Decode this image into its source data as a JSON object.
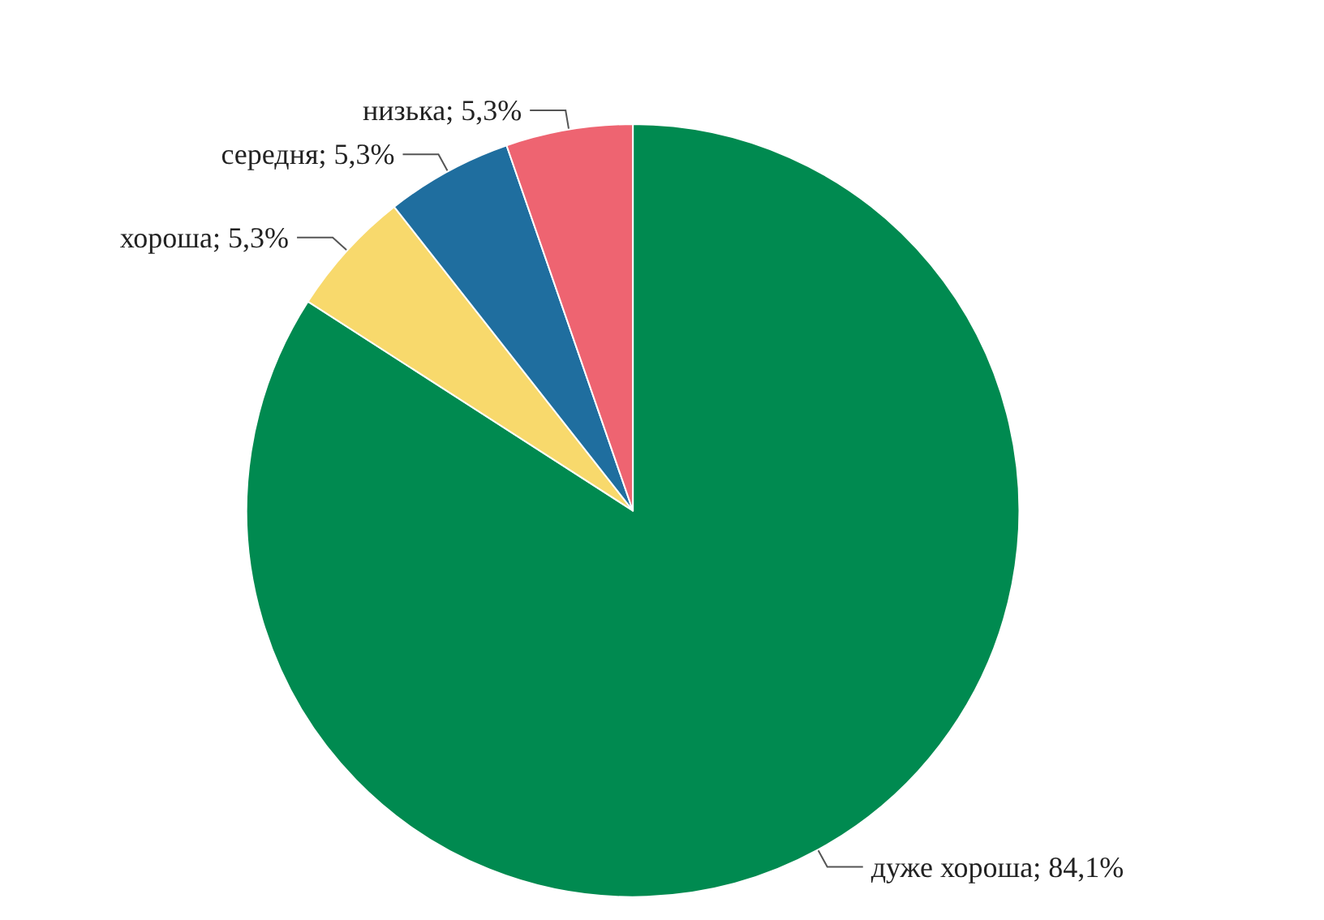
{
  "chart_data": {
    "type": "pie",
    "categories": [
      "дуже хороша",
      "хороша",
      "середня",
      "низька"
    ],
    "values": [
      84.1,
      5.3,
      5.3,
      5.3
    ],
    "value_labels": [
      "84,1%",
      "5,3%",
      "5,3%",
      "5,3%"
    ],
    "colors": [
      "#008a50",
      "#f8d96c",
      "#1f6e9f",
      "#ee6471"
    ],
    "legend": false
  }
}
